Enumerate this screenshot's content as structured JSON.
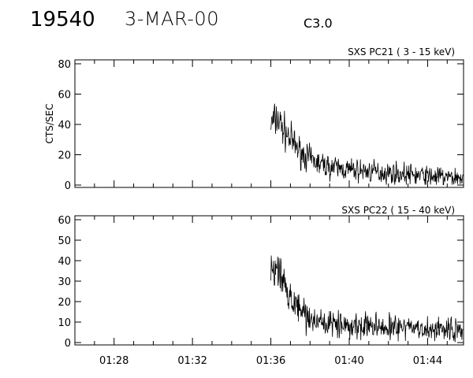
{
  "header": {
    "event_id": "19540",
    "date": "3-MAR-00",
    "flare_class": "C3.0"
  },
  "chart_data": [
    {
      "type": "line",
      "title": "SXS PC21  (  3 - 15 keV)",
      "ylabel": "CTS/SEC",
      "xlabel": "",
      "ylim": [
        0,
        80
      ],
      "yticks": [
        0,
        20,
        40,
        60,
        80
      ],
      "xlim": [
        "01:26:00",
        "01:45:50"
      ],
      "xticks": [
        "01:28",
        "01:32",
        "01:36",
        "01:40",
        "01:44"
      ],
      "grid": false,
      "series": [
        {
          "values_note_free": true,
          "time": [
            "01:36:00",
            "01:36:20",
            "01:36:40",
            "01:37:00",
            "01:37:30",
            "01:38:00",
            "01:38:30",
            "01:39:00",
            "01:40:00",
            "01:41:00",
            "01:42:00",
            "01:43:00",
            "01:44:00",
            "01:45:00",
            "01:45:50"
          ],
          "values": [
            40,
            44,
            36,
            30,
            22,
            17,
            14,
            12,
            10,
            9,
            8,
            7,
            6,
            5,
            5
          ],
          "noise": 5
        }
      ]
    },
    {
      "type": "line",
      "title": "SXS PC22  ( 15 - 40 keV)",
      "ylabel": "",
      "xlabel": "",
      "ylim": [
        0,
        60
      ],
      "yticks": [
        0,
        10,
        20,
        30,
        40,
        50,
        60
      ],
      "xlim": [
        "01:26:00",
        "01:45:50"
      ],
      "xticks": [
        "01:28",
        "01:32",
        "01:36",
        "01:40",
        "01:44"
      ],
      "grid": false,
      "series": [
        {
          "time": [
            "01:36:00",
            "01:36:20",
            "01:36:40",
            "01:37:00",
            "01:37:30",
            "01:38:00",
            "01:38:30",
            "01:39:00",
            "01:40:00",
            "01:41:00",
            "01:42:00",
            "01:43:00",
            "01:44:00",
            "01:45:00",
            "01:45:50"
          ],
          "values": [
            30,
            35,
            28,
            22,
            16,
            12,
            10,
            9,
            8,
            8,
            7,
            7,
            6,
            6,
            5
          ],
          "noise": 4
        }
      ]
    }
  ]
}
